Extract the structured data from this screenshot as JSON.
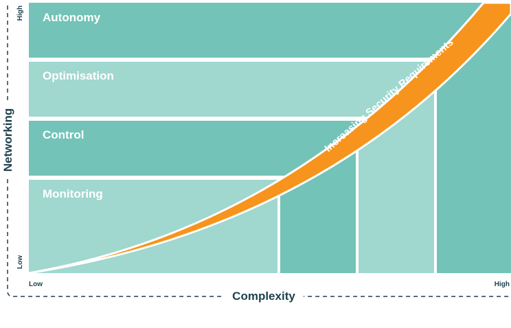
{
  "bands": [
    {
      "label": "Autonomy",
      "color": "#73c3b8"
    },
    {
      "label": "Optimisation",
      "color": "#a0d7cf"
    },
    {
      "label": "Control",
      "color": "#73c3b8"
    },
    {
      "label": "Monitoring",
      "color": "#a0d7cf"
    }
  ],
  "colors": {
    "curve": "#f7941d",
    "axis": "#1d3f4d",
    "divider": "#ffffff"
  },
  "curve_label": "Increasing Security Requirements",
  "axes": {
    "y_title": "Networking",
    "y_high": "High",
    "y_low": "Low",
    "x_title": "Complexity",
    "x_low": "Low",
    "x_high": "High"
  }
}
